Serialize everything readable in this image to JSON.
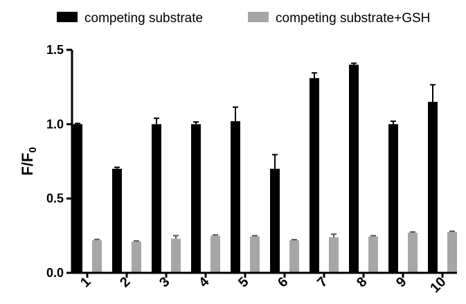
{
  "chart_data": {
    "type": "bar",
    "categories": [
      "1",
      "2",
      "3",
      "4",
      "5",
      "6",
      "7",
      "8",
      "9",
      "10"
    ],
    "series": [
      {
        "name": "competing substrate",
        "color": "#000000",
        "values": [
          1.0,
          0.7,
          1.0,
          1.0,
          1.02,
          0.7,
          1.31,
          1.4,
          1.0,
          1.15
        ],
        "errors": [
          0.005,
          0.01,
          0.04,
          0.015,
          0.095,
          0.095,
          0.035,
          0.01,
          0.02,
          0.115
        ]
      },
      {
        "name": "competing substrate+GSH",
        "color": "#a6a6a6",
        "values": [
          0.22,
          0.21,
          0.23,
          0.25,
          0.245,
          0.22,
          0.24,
          0.245,
          0.27,
          0.275
        ],
        "errors": [
          0.005,
          0.005,
          0.02,
          0.005,
          0.005,
          0.003,
          0.02,
          0.005,
          0.005,
          0.005
        ]
      }
    ],
    "title": "",
    "xlabel": "",
    "ylabel": "F/F",
    "ylabel_subscript": "0",
    "ylim": [
      0,
      1.5
    ],
    "yticks": [
      "0.0",
      "0.5",
      "1.0",
      "1.5"
    ],
    "grid": false,
    "legend_position": "top"
  }
}
